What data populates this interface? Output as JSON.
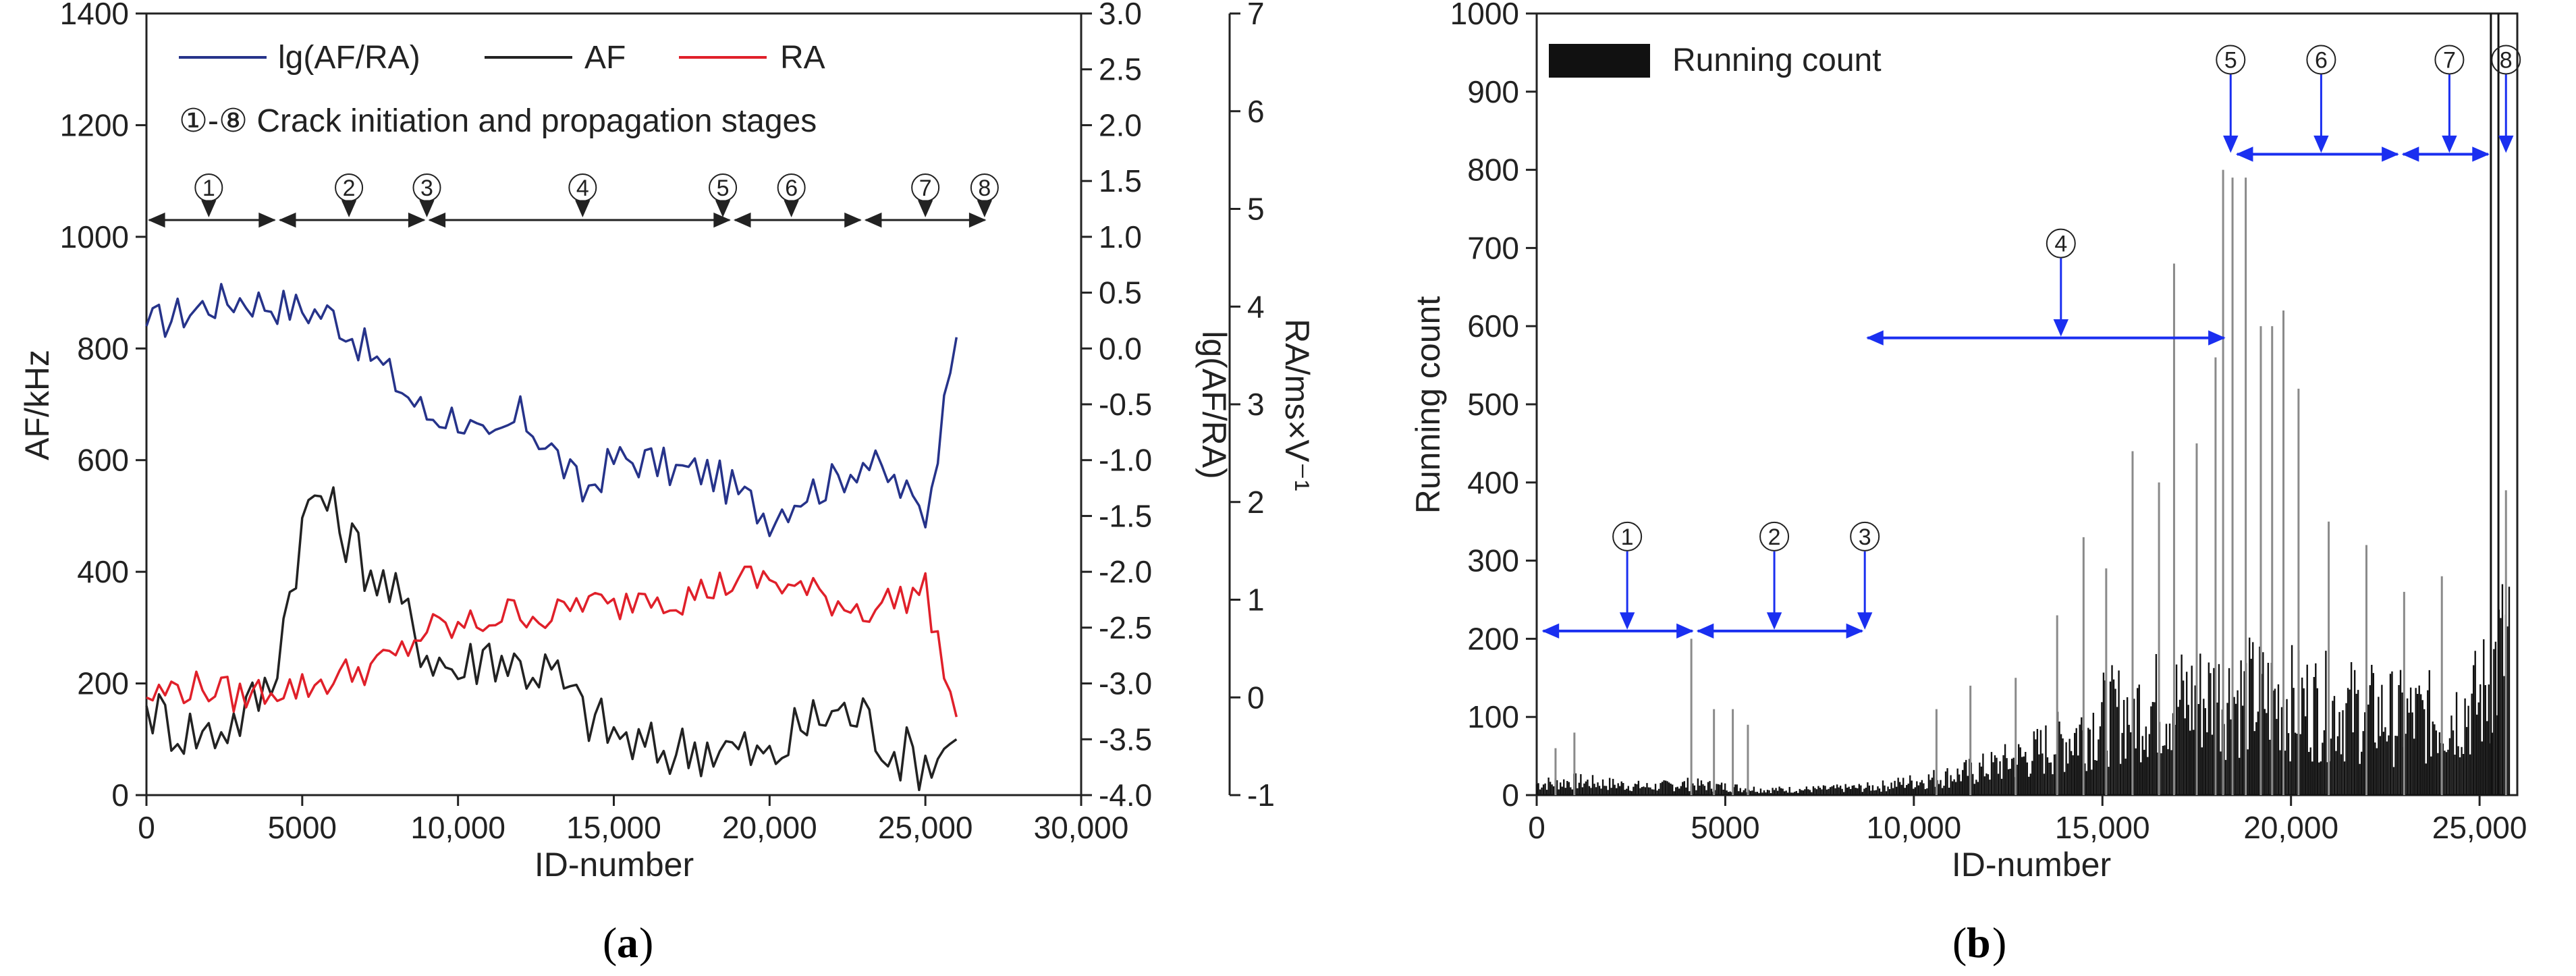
{
  "figure": {
    "panel_a_label": "a",
    "panel_b_label": "b"
  },
  "chart_data": [
    {
      "type": "line",
      "panel": "a",
      "xlabel": "ID-number",
      "ylabel_left": "AF/kHz",
      "ylabel_right1": "lg(AF/RA)",
      "ylabel_right2": "RA/ms×V⁻¹",
      "xlim": [
        0,
        30000
      ],
      "xticks": [
        0,
        5000,
        10000,
        15000,
        20000,
        25000,
        30000
      ],
      "xtick_labels": [
        "0",
        "5000",
        "10,000",
        "15,000",
        "20,000",
        "25,000",
        "30,000"
      ],
      "ylim_left": [
        0,
        1400
      ],
      "yticks_left": [
        0,
        200,
        400,
        600,
        800,
        1000,
        1200,
        1400
      ],
      "ylim_right1": [
        -4.0,
        3.0
      ],
      "yticks_right1": [
        "-4.0",
        "-3.5",
        "-3.0",
        "-2.5",
        "-2.0",
        "-1.5",
        "-1.0",
        "-0.5",
        "0.0",
        "0.5",
        "1.0",
        "1.5",
        "2.0",
        "2.5",
        "3.0"
      ],
      "ylim_right2": [
        -1,
        7
      ],
      "yticks_right2": [
        "-1",
        "0",
        "1",
        "2",
        "3",
        "4",
        "5",
        "6",
        "7"
      ],
      "legend": {
        "position": "top-left",
        "entries": [
          "lg(AF/RA)",
          "AF",
          "RA"
        ],
        "note": "①-⑧ Crack initiation and propagation stages"
      },
      "colors": {
        "lg": "#26338a",
        "af": "#222222",
        "ra": "#e0202a",
        "stage": "#222222"
      },
      "stage_labels": [
        "①",
        "②",
        "③",
        "④",
        "⑤",
        "⑥",
        "⑦",
        "⑧"
      ],
      "stage_markers_x": [
        2000,
        6500,
        9000,
        14000,
        18500,
        20700,
        25000,
        26900
      ],
      "stage_segments": [
        [
          0,
          4200
        ],
        [
          4200,
          9000
        ],
        [
          9000,
          18800
        ],
        [
          18800,
          23000
        ],
        [
          23000,
          27000
        ]
      ],
      "stage_arrow_y_left_units": 1030,
      "series": [
        {
          "name": "lg(AF/RA)",
          "axis": "right1",
          "x": [
            0,
            1000,
            2000,
            3000,
            4000,
            5000,
            6000,
            7000,
            8000,
            9000,
            10000,
            11000,
            12000,
            13000,
            14000,
            15000,
            16000,
            17000,
            18000,
            19000,
            20000,
            21000,
            22000,
            23000,
            24000,
            25000,
            26000
          ],
          "values": [
            0.2,
            0.3,
            0.4,
            0.45,
            0.4,
            0.35,
            0.3,
            0.0,
            -0.3,
            -0.6,
            -0.6,
            -0.9,
            -0.6,
            -0.9,
            -1.3,
            -1.0,
            -1.0,
            -1.1,
            -1.1,
            -1.3,
            -1.5,
            -1.3,
            -1.2,
            -1.0,
            -1.2,
            -1.5,
            0.1
          ]
        },
        {
          "name": "AF",
          "axis": "left",
          "x": [
            0,
            1000,
            2000,
            3000,
            4000,
            5000,
            5500,
            6000,
            7000,
            8000,
            9000,
            10000,
            11000,
            12000,
            13000,
            14000,
            15000,
            16000,
            17000,
            18000,
            19000,
            20000,
            21000,
            22000,
            23000,
            24000,
            25000,
            26000
          ],
          "values": [
            160,
            120,
            110,
            140,
            200,
            480,
            550,
            500,
            420,
            350,
            260,
            220,
            260,
            230,
            220,
            150,
            110,
            80,
            80,
            90,
            80,
            60,
            120,
            150,
            140,
            80,
            60,
            100
          ]
        },
        {
          "name": "RA",
          "axis": "right2",
          "x": [
            0,
            1000,
            2000,
            3000,
            4000,
            5000,
            6000,
            7000,
            8000,
            9000,
            10000,
            11000,
            12000,
            13000,
            14000,
            15000,
            16000,
            17000,
            18000,
            19000,
            20000,
            21000,
            22000,
            23000,
            24000,
            25000,
            26000
          ],
          "values": [
            0.0,
            0.1,
            0.1,
            0.0,
            0.1,
            0.1,
            0.2,
            0.3,
            0.4,
            0.7,
            0.7,
            0.8,
            0.9,
            0.8,
            1.0,
            0.9,
            1.1,
            1.0,
            1.1,
            1.2,
            1.2,
            1.1,
            1.0,
            0.9,
            1.0,
            1.1,
            -0.2
          ]
        }
      ]
    },
    {
      "type": "bar",
      "panel": "b",
      "xlabel": "ID-number",
      "ylabel": "Running count",
      "xlim": [
        0,
        26000
      ],
      "xticks": [
        0,
        5000,
        10000,
        15000,
        20000,
        25000
      ],
      "xtick_labels": [
        "0",
        "5000",
        "10,000",
        "15,000",
        "20,000",
        "25,000"
      ],
      "ylim": [
        0,
        1000
      ],
      "yticks": [
        0,
        100,
        200,
        300,
        400,
        500,
        600,
        700,
        800,
        900,
        1000
      ],
      "legend": {
        "position": "top-left",
        "entries": [
          "Running count"
        ]
      },
      "colors": {
        "bars": "#111111",
        "spikes": "#8a8a8a",
        "stage": "#1a2ff0"
      },
      "stage_labels": [
        "①",
        "②",
        "③",
        "④",
        "⑤",
        "⑥",
        "⑦",
        "⑧"
      ],
      "stage_arrows": [
        {
          "label": "①",
          "x": 2400,
          "y": 210,
          "span": [
            100,
            4200
          ]
        },
        {
          "label": "②",
          "x": 6300,
          "y": 210,
          "span": [
            4200,
            8700
          ]
        },
        {
          "label": "③",
          "x": 8700,
          "y": 210,
          "span": null
        },
        {
          "label": "④",
          "x": 13900,
          "y": 585,
          "span": [
            8700,
            18300
          ]
        },
        {
          "label": "⑤",
          "x": 18400,
          "y": 820,
          "span": null
        },
        {
          "label": "⑥",
          "x": 20800,
          "y": 820,
          "span": [
            18500,
            22900
          ]
        },
        {
          "label": "⑦",
          "x": 24200,
          "y": 820,
          "span": [
            22900,
            25300
          ]
        },
        {
          "label": "⑧",
          "x": 25700,
          "y": 820,
          "span": null
        }
      ],
      "series": [
        {
          "name": "Running count (envelope)",
          "x": [
            0,
            1000,
            2000,
            3000,
            4000,
            5000,
            6000,
            7000,
            8000,
            9000,
            10000,
            11000,
            12000,
            13000,
            14000,
            15000,
            16000,
            17000,
            18000,
            19000,
            20000,
            21000,
            22000,
            23000,
            24000,
            25000,
            25800
          ],
          "values": [
            20,
            25,
            20,
            15,
            20,
            15,
            10,
            10,
            12,
            15,
            25,
            35,
            50,
            70,
            100,
            140,
            160,
            170,
            180,
            180,
            170,
            160,
            150,
            140,
            140,
            170,
            290
          ]
        },
        {
          "name": "Running count (peaks)",
          "x": [
            500,
            1000,
            4100,
            4700,
            5200,
            5600,
            10600,
            11500,
            12700,
            13800,
            14500,
            15100,
            15800,
            16500,
            16900,
            17500,
            18000,
            18200,
            18450,
            18800,
            19200,
            19500,
            19800,
            20200,
            21000,
            22000,
            23000,
            24000,
            25300,
            25500,
            25700
          ],
          "values": [
            60,
            80,
            200,
            110,
            110,
            90,
            110,
            140,
            150,
            230,
            330,
            290,
            440,
            400,
            680,
            450,
            560,
            800,
            790,
            790,
            600,
            600,
            620,
            520,
            350,
            320,
            260,
            280,
            1000,
            1000,
            390
          ]
        }
      ]
    }
  ]
}
